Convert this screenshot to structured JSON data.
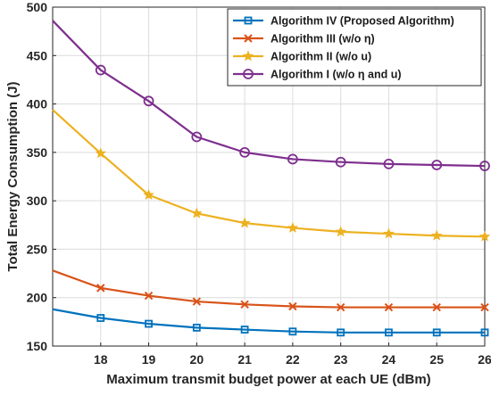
{
  "chart_data": {
    "type": "line",
    "title": "",
    "xlabel": "Maximum transmit budget power at each UE (dBm)",
    "ylabel": "Total Energy Consumption (J)",
    "x": [
      17,
      18,
      19,
      20,
      21,
      22,
      23,
      24,
      25,
      26
    ],
    "xlim": [
      17,
      26
    ],
    "ylim": [
      150,
      500
    ],
    "xticks": [
      18,
      19,
      20,
      21,
      22,
      23,
      24,
      25,
      26
    ],
    "yticks": [
      150,
      200,
      250,
      300,
      350,
      400,
      450,
      500
    ],
    "grid": true,
    "legend_position": "top-right",
    "series": [
      {
        "name": "Algorithm IV (Proposed Algorithm)",
        "color": "#0072BD",
        "marker": "square",
        "values": [
          188,
          179,
          173,
          169,
          167,
          165,
          164,
          164,
          164,
          164
        ]
      },
      {
        "name": "Algorithm III (w/o η)",
        "color": "#D95319",
        "marker": "x",
        "values": [
          228,
          210,
          202,
          196,
          193,
          191,
          190,
          190,
          190,
          190
        ]
      },
      {
        "name": "Algorithm II (w/o u)",
        "color": "#EDB120",
        "marker": "star",
        "values": [
          394,
          349,
          306,
          287,
          277,
          272,
          268,
          266,
          264,
          263
        ]
      },
      {
        "name": "Algorithm I (w/o η and u)",
        "color": "#7E2F8E",
        "marker": "circle",
        "values": [
          486,
          435,
          403,
          366,
          350,
          343,
          340,
          338,
          337,
          336
        ]
      }
    ]
  }
}
